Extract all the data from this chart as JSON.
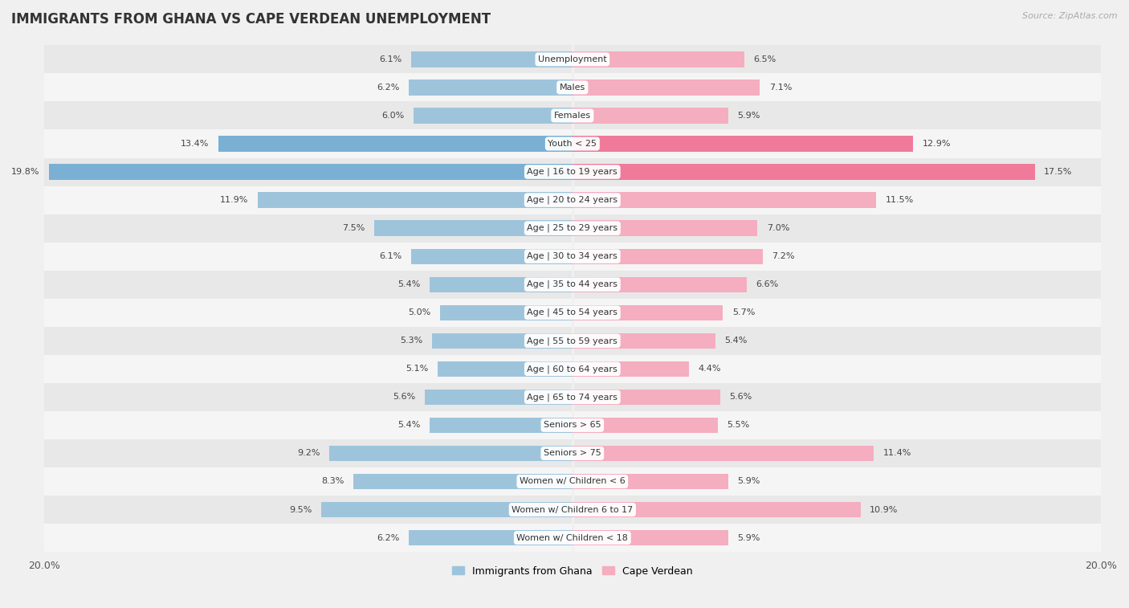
{
  "title": "IMMIGRANTS FROM GHANA VS CAPE VERDEAN UNEMPLOYMENT",
  "source": "Source: ZipAtlas.com",
  "categories": [
    "Unemployment",
    "Males",
    "Females",
    "Youth < 25",
    "Age | 16 to 19 years",
    "Age | 20 to 24 years",
    "Age | 25 to 29 years",
    "Age | 30 to 34 years",
    "Age | 35 to 44 years",
    "Age | 45 to 54 years",
    "Age | 55 to 59 years",
    "Age | 60 to 64 years",
    "Age | 65 to 74 years",
    "Seniors > 65",
    "Seniors > 75",
    "Women w/ Children < 6",
    "Women w/ Children 6 to 17",
    "Women w/ Children < 18"
  ],
  "ghana_values": [
    6.1,
    6.2,
    6.0,
    13.4,
    19.8,
    11.9,
    7.5,
    6.1,
    5.4,
    5.0,
    5.3,
    5.1,
    5.6,
    5.4,
    9.2,
    8.3,
    9.5,
    6.2
  ],
  "capeverde_values": [
    6.5,
    7.1,
    5.9,
    12.9,
    17.5,
    11.5,
    7.0,
    7.2,
    6.6,
    5.7,
    5.4,
    4.4,
    5.6,
    5.5,
    11.4,
    5.9,
    10.9,
    5.9
  ],
  "ghana_color": "#9ec4dc",
  "capeverde_color": "#f5adc0",
  "ghana_highlight_color": "#7ab0d4",
  "capeverde_highlight_color": "#f07a9a",
  "highlight_rows": [
    3,
    4
  ],
  "x_max": 20.0,
  "background_color": "#f0f0f0",
  "row_bg_even": "#e8e8e8",
  "row_bg_odd": "#f5f5f5",
  "label_pill_color": "#ffffff",
  "legend_ghana": "Immigrants from Ghana",
  "legend_capeverde": "Cape Verdean"
}
